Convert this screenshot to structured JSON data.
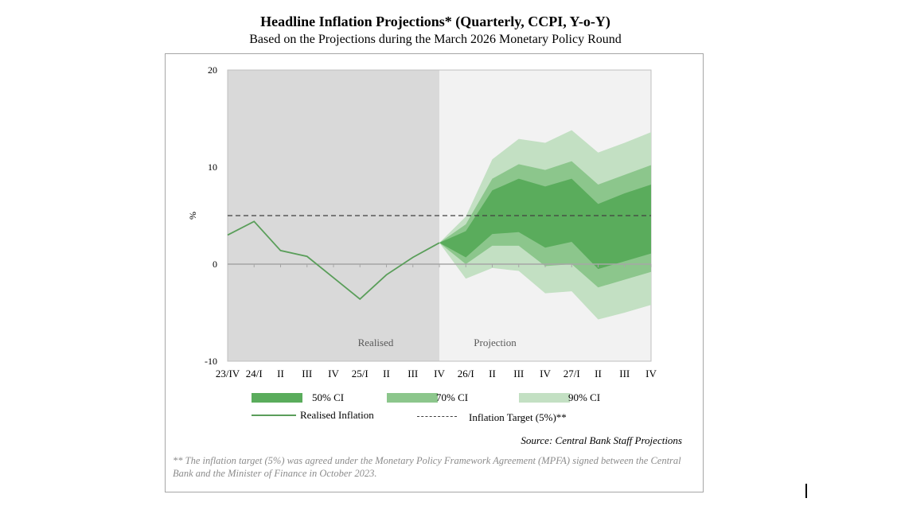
{
  "chart_data": {
    "type": "area",
    "title": "Headline Inflation Projections* (Quarterly, CCPI, Y-o-Y)",
    "subtitle": "Based on the Projections during the March 2026 Monetary Policy Round",
    "ylabel": "%",
    "ylim": [
      -10,
      20
    ],
    "yticks": [
      "20",
      "10",
      "0",
      "-10"
    ],
    "categories": [
      "23/IV",
      "24/I",
      "II",
      "III",
      "IV",
      "25/I",
      "II",
      "III",
      "IV",
      "26/I",
      "II",
      "III",
      "IV",
      "27/I",
      "II",
      "III",
      "IV"
    ],
    "regions": {
      "realised": "Realised",
      "projection": "Projection"
    },
    "realised_inflation": {
      "name": "Realised Inflation",
      "values": [
        3.0,
        4.4,
        1.4,
        0.8,
        -1.4,
        -3.6,
        -1.1,
        0.7,
        2.2
      ]
    },
    "projection_start_index": 8,
    "bands": [
      {
        "name": "90% CI",
        "color": "#c3e0c3",
        "upper": [
          2.2,
          4.9,
          10.8,
          12.9,
          12.5,
          13.8,
          11.5,
          12.5,
          13.6
        ],
        "lower": [
          2.2,
          -1.5,
          -0.4,
          -0.7,
          -3.0,
          -2.8,
          -5.7,
          -5.0,
          -4.2
        ]
      },
      {
        "name": "70% CI",
        "color": "#8cc68c",
        "upper": [
          2.2,
          4.1,
          8.8,
          10.3,
          9.7,
          10.6,
          8.2,
          9.2,
          10.2
        ],
        "lower": [
          2.2,
          0.0,
          1.9,
          1.9,
          -0.2,
          0.0,
          -2.4,
          -1.6,
          -0.8
        ]
      },
      {
        "name": "50% CI",
        "color": "#5aac5c",
        "upper": [
          2.2,
          3.4,
          7.6,
          8.8,
          8.0,
          8.8,
          6.2,
          7.3,
          8.2
        ],
        "lower": [
          2.2,
          0.7,
          3.1,
          3.3,
          1.7,
          2.3,
          -0.5,
          0.3,
          1.1
        ]
      }
    ],
    "target": {
      "name": "Inflation Target (5%)**",
      "value": 5
    },
    "colors": {
      "realised_bg": "#d9d9d9",
      "projection_bg": "#f2f2f2",
      "line": "#5a9e5a",
      "target": "#404040"
    },
    "legend": {
      "ci50": "50% CI",
      "ci70": "70% CI",
      "ci90": "90% CI",
      "realised": "Realised Inflation",
      "target": "Inflation Target (5%)**"
    },
    "legend_placement": "bottom",
    "grid": false
  },
  "source": "Source: Central Bank Staff Projections",
  "footnote": "** The inflation target (5%) was agreed under the Monetary Policy Framework Agreement (MPFA) signed between the Central Bank and the Minister of Finance in October 2023."
}
